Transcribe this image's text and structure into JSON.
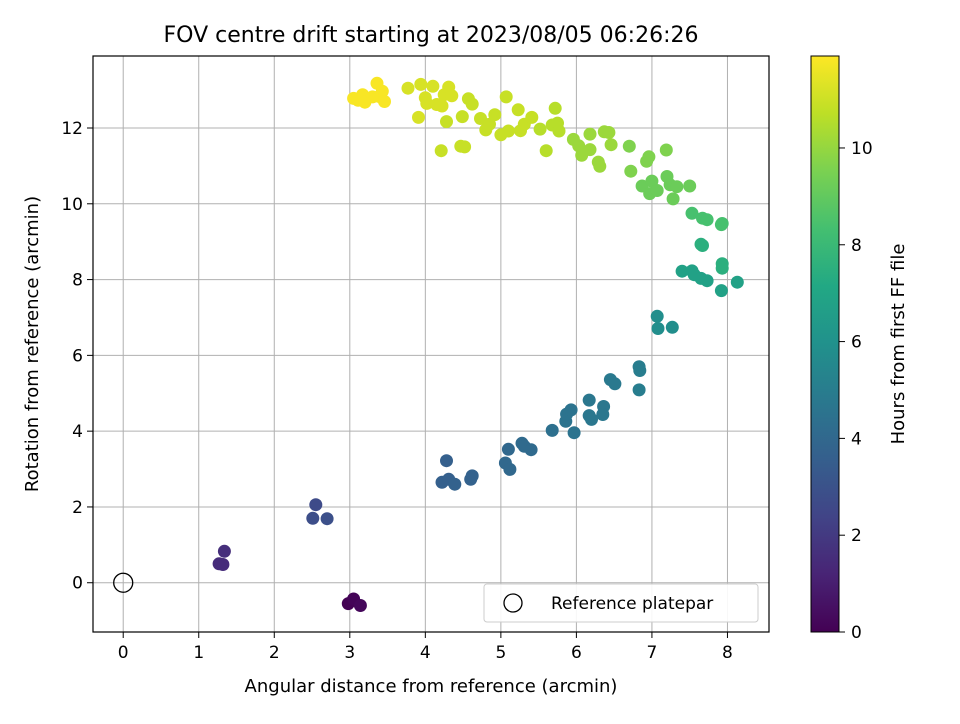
{
  "chart_data": {
    "type": "scatter",
    "title": "FOV centre drift starting at 2023/08/05 06:26:26",
    "xlabel": "Angular distance from reference (arcmin)",
    "ylabel": "Rotation from reference (arcmin)",
    "xlim": [
      -0.4,
      8.55
    ],
    "ylim": [
      -1.3,
      13.9
    ],
    "xticks": [
      0,
      1,
      2,
      3,
      4,
      5,
      6,
      7,
      8
    ],
    "yticks": [
      0,
      2,
      4,
      6,
      8,
      10,
      12
    ],
    "grid": true,
    "colorbar": {
      "label": "Hours from first FF file",
      "range": [
        0,
        11.9
      ],
      "ticks": [
        0,
        2,
        4,
        6,
        8,
        10
      ],
      "colormap": "viridis"
    },
    "legend": {
      "placement": "lower right",
      "entries": [
        {
          "label": "Reference platepar",
          "marker": "open-circle"
        }
      ]
    },
    "reference_point": {
      "x": 0,
      "y": 0
    },
    "points": [
      {
        "x": 2.98,
        "y": -0.55,
        "h": 0.0
      },
      {
        "x": 3.05,
        "y": -0.43,
        "h": 0.1
      },
      {
        "x": 3.14,
        "y": -0.6,
        "h": 0.2
      },
      {
        "x": 1.27,
        "y": 0.5,
        "h": 1.5
      },
      {
        "x": 1.32,
        "y": 0.48,
        "h": 1.5
      },
      {
        "x": 1.34,
        "y": 0.83,
        "h": 1.6
      },
      {
        "x": 2.55,
        "y": 2.06,
        "h": 2.7
      },
      {
        "x": 2.51,
        "y": 1.7,
        "h": 2.8
      },
      {
        "x": 2.7,
        "y": 1.69,
        "h": 2.9
      },
      {
        "x": 4.28,
        "y": 3.22,
        "h": 3.6
      },
      {
        "x": 4.22,
        "y": 2.65,
        "h": 3.6
      },
      {
        "x": 4.31,
        "y": 2.73,
        "h": 3.6
      },
      {
        "x": 4.39,
        "y": 2.6,
        "h": 3.7
      },
      {
        "x": 4.6,
        "y": 2.73,
        "h": 3.7
      },
      {
        "x": 4.62,
        "y": 2.82,
        "h": 3.7
      },
      {
        "x": 5.1,
        "y": 3.52,
        "h": 4.0
      },
      {
        "x": 5.06,
        "y": 3.16,
        "h": 4.0
      },
      {
        "x": 5.12,
        "y": 2.99,
        "h": 4.0
      },
      {
        "x": 5.28,
        "y": 3.68,
        "h": 4.1
      },
      {
        "x": 5.31,
        "y": 3.6,
        "h": 4.1
      },
      {
        "x": 5.4,
        "y": 3.51,
        "h": 4.1
      },
      {
        "x": 5.68,
        "y": 4.02,
        "h": 4.4
      },
      {
        "x": 5.86,
        "y": 4.26,
        "h": 4.5
      },
      {
        "x": 5.87,
        "y": 4.45,
        "h": 4.5
      },
      {
        "x": 5.93,
        "y": 4.56,
        "h": 4.5
      },
      {
        "x": 5.97,
        "y": 3.96,
        "h": 4.5
      },
      {
        "x": 6.17,
        "y": 4.82,
        "h": 4.7
      },
      {
        "x": 6.17,
        "y": 4.41,
        "h": 4.7
      },
      {
        "x": 6.2,
        "y": 4.31,
        "h": 4.7
      },
      {
        "x": 6.36,
        "y": 4.65,
        "h": 4.7
      },
      {
        "x": 6.35,
        "y": 4.44,
        "h": 4.7
      },
      {
        "x": 6.45,
        "y": 5.36,
        "h": 4.8
      },
      {
        "x": 6.51,
        "y": 5.25,
        "h": 4.8
      },
      {
        "x": 6.83,
        "y": 5.7,
        "h": 5.0
      },
      {
        "x": 6.84,
        "y": 5.6,
        "h": 5.0
      },
      {
        "x": 6.83,
        "y": 5.09,
        "h": 5.0
      },
      {
        "x": 7.07,
        "y": 7.03,
        "h": 5.8
      },
      {
        "x": 7.08,
        "y": 6.71,
        "h": 5.8
      },
      {
        "x": 7.27,
        "y": 6.74,
        "h": 5.8
      },
      {
        "x": 7.4,
        "y": 8.22,
        "h": 6.8
      },
      {
        "x": 7.53,
        "y": 8.23,
        "h": 6.8
      },
      {
        "x": 7.56,
        "y": 8.13,
        "h": 6.8
      },
      {
        "x": 7.65,
        "y": 8.03,
        "h": 6.8
      },
      {
        "x": 7.73,
        "y": 7.97,
        "h": 6.8
      },
      {
        "x": 7.92,
        "y": 7.71,
        "h": 6.8
      },
      {
        "x": 8.13,
        "y": 7.93,
        "h": 6.8
      },
      {
        "x": 7.65,
        "y": 8.93,
        "h": 7.5
      },
      {
        "x": 7.67,
        "y": 8.9,
        "h": 7.5
      },
      {
        "x": 7.93,
        "y": 8.42,
        "h": 7.5
      },
      {
        "x": 7.93,
        "y": 8.3,
        "h": 7.5
      },
      {
        "x": 7.53,
        "y": 9.75,
        "h": 8.4
      },
      {
        "x": 7.67,
        "y": 9.62,
        "h": 8.4
      },
      {
        "x": 7.73,
        "y": 9.58,
        "h": 8.4
      },
      {
        "x": 7.92,
        "y": 9.45,
        "h": 8.4
      },
      {
        "x": 7.93,
        "y": 9.48,
        "h": 8.4
      },
      {
        "x": 6.87,
        "y": 10.47,
        "h": 9.2
      },
      {
        "x": 6.97,
        "y": 10.27,
        "h": 9.2
      },
      {
        "x": 7.0,
        "y": 10.6,
        "h": 9.2
      },
      {
        "x": 7.07,
        "y": 10.35,
        "h": 9.2
      },
      {
        "x": 7.2,
        "y": 10.72,
        "h": 9.2
      },
      {
        "x": 7.24,
        "y": 10.5,
        "h": 9.2
      },
      {
        "x": 7.28,
        "y": 10.13,
        "h": 9.2
      },
      {
        "x": 7.33,
        "y": 10.45,
        "h": 9.2
      },
      {
        "x": 7.5,
        "y": 10.47,
        "h": 9.2
      },
      {
        "x": 6.72,
        "y": 10.86,
        "h": 9.6
      },
      {
        "x": 6.93,
        "y": 11.12,
        "h": 9.6
      },
      {
        "x": 6.96,
        "y": 11.24,
        "h": 9.6
      },
      {
        "x": 7.19,
        "y": 11.42,
        "h": 9.6
      },
      {
        "x": 6.7,
        "y": 11.52,
        "h": 9.6
      },
      {
        "x": 5.96,
        "y": 11.7,
        "h": 10.1
      },
      {
        "x": 6.03,
        "y": 11.53,
        "h": 10.1
      },
      {
        "x": 6.07,
        "y": 11.28,
        "h": 10.1
      },
      {
        "x": 6.18,
        "y": 11.43,
        "h": 10.1
      },
      {
        "x": 6.18,
        "y": 11.84,
        "h": 10.1
      },
      {
        "x": 6.29,
        "y": 11.1,
        "h": 10.1
      },
      {
        "x": 6.31,
        "y": 10.99,
        "h": 10.1
      },
      {
        "x": 6.37,
        "y": 11.9,
        "h": 10.1
      },
      {
        "x": 6.43,
        "y": 11.88,
        "h": 10.1
      },
      {
        "x": 6.46,
        "y": 11.56,
        "h": 10.1
      },
      {
        "x": 5.52,
        "y": 11.97,
        "h": 10.6
      },
      {
        "x": 5.6,
        "y": 11.4,
        "h": 10.6
      },
      {
        "x": 5.68,
        "y": 12.08,
        "h": 10.6
      },
      {
        "x": 5.75,
        "y": 12.13,
        "h": 10.6
      },
      {
        "x": 5.77,
        "y": 11.92,
        "h": 10.6
      },
      {
        "x": 5.72,
        "y": 12.52,
        "h": 10.6
      },
      {
        "x": 4.47,
        "y": 11.52,
        "h": 10.9
      },
      {
        "x": 4.52,
        "y": 11.5,
        "h": 10.9
      },
      {
        "x": 4.21,
        "y": 11.4,
        "h": 10.9
      },
      {
        "x": 4.28,
        "y": 12.17,
        "h": 10.9
      },
      {
        "x": 4.49,
        "y": 12.3,
        "h": 10.9
      },
      {
        "x": 4.73,
        "y": 12.25,
        "h": 10.9
      },
      {
        "x": 4.8,
        "y": 11.95,
        "h": 10.9
      },
      {
        "x": 4.85,
        "y": 12.1,
        "h": 10.9
      },
      {
        "x": 4.92,
        "y": 12.35,
        "h": 10.9
      },
      {
        "x": 5.0,
        "y": 11.82,
        "h": 10.9
      },
      {
        "x": 5.1,
        "y": 11.92,
        "h": 10.9
      },
      {
        "x": 5.23,
        "y": 12.48,
        "h": 10.9
      },
      {
        "x": 5.26,
        "y": 11.93,
        "h": 10.9
      },
      {
        "x": 5.31,
        "y": 12.1,
        "h": 10.9
      },
      {
        "x": 5.41,
        "y": 12.28,
        "h": 10.9
      },
      {
        "x": 4.57,
        "y": 12.77,
        "h": 10.9
      },
      {
        "x": 4.62,
        "y": 12.63,
        "h": 10.9
      },
      {
        "x": 5.07,
        "y": 12.82,
        "h": 10.9
      },
      {
        "x": 3.91,
        "y": 12.28,
        "h": 11.2
      },
      {
        "x": 3.94,
        "y": 13.15,
        "h": 11.2
      },
      {
        "x": 4.0,
        "y": 12.8,
        "h": 11.2
      },
      {
        "x": 4.02,
        "y": 12.65,
        "h": 11.2
      },
      {
        "x": 4.1,
        "y": 13.1,
        "h": 11.2
      },
      {
        "x": 4.15,
        "y": 12.62,
        "h": 11.2
      },
      {
        "x": 4.22,
        "y": 12.58,
        "h": 11.2
      },
      {
        "x": 4.25,
        "y": 12.88,
        "h": 11.2
      },
      {
        "x": 4.31,
        "y": 13.08,
        "h": 11.2
      },
      {
        "x": 4.35,
        "y": 12.85,
        "h": 11.2
      },
      {
        "x": 3.77,
        "y": 13.05,
        "h": 11.2
      },
      {
        "x": 3.05,
        "y": 12.78,
        "h": 11.8
      },
      {
        "x": 3.11,
        "y": 12.73,
        "h": 11.8
      },
      {
        "x": 3.17,
        "y": 12.88,
        "h": 11.8
      },
      {
        "x": 3.2,
        "y": 12.68,
        "h": 11.8
      },
      {
        "x": 3.36,
        "y": 13.18,
        "h": 11.8
      },
      {
        "x": 3.39,
        "y": 12.83,
        "h": 11.8
      },
      {
        "x": 3.43,
        "y": 12.97,
        "h": 11.8
      },
      {
        "x": 3.46,
        "y": 12.7,
        "h": 11.8
      },
      {
        "x": 3.3,
        "y": 12.82,
        "h": 11.8
      }
    ]
  }
}
